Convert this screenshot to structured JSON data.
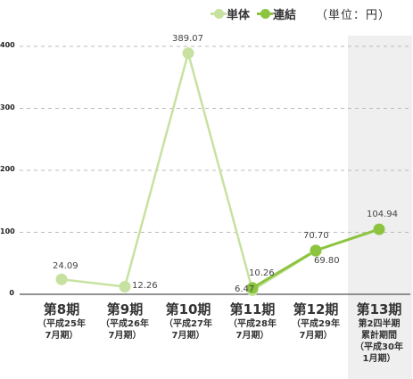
{
  "legend": {
    "series1": "単体",
    "series2": "連結",
    "unit": "（単位：円）"
  },
  "colors": {
    "series1": "#c7e2a0",
    "series2": "#8cc43f",
    "grid": "#bbbbbb",
    "highlight_bg": "#efefef"
  },
  "chart_data": {
    "type": "line",
    "categories": [
      {
        "main": "第8期",
        "sub": [
          "（平成25年",
          "7月期）"
        ]
      },
      {
        "main": "第9期",
        "sub": [
          "（平成26年",
          "7月期）"
        ]
      },
      {
        "main": "第10期",
        "sub": [
          "（平成27年",
          "7月期）"
        ]
      },
      {
        "main": "第11期",
        "sub": [
          "（平成28年",
          "7月期）"
        ]
      },
      {
        "main": "第12期",
        "sub": [
          "（平成29年",
          "7月期）"
        ]
      },
      {
        "main": "第13期",
        "sub": [
          "第2四半期",
          "累計期間",
          "（平成30年",
          "1月期）"
        ]
      }
    ],
    "series": [
      {
        "name": "単体",
        "values": [
          24.09,
          12.26,
          389.07,
          6.47,
          69.8,
          null
        ],
        "labels": [
          "24.09",
          "12.26",
          "389.07",
          "6.47",
          "69.80",
          ""
        ]
      },
      {
        "name": "連結",
        "values": [
          null,
          null,
          null,
          10.26,
          70.7,
          104.94
        ],
        "labels": [
          "",
          "",
          "",
          "10.26",
          "70.70",
          "104.94"
        ]
      }
    ],
    "yticks": [
      "0",
      "100",
      "200",
      "300",
      "400"
    ],
    "ylim": [
      0,
      400
    ],
    "grid": true,
    "legend_position": "top-right"
  }
}
